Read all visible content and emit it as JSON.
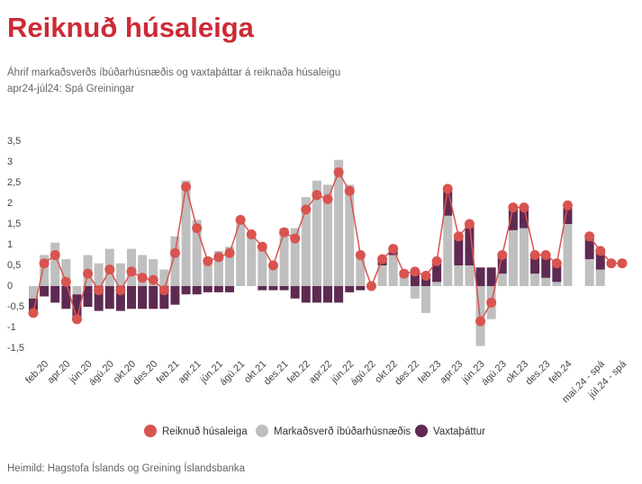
{
  "chart_data": {
    "type": "combo",
    "title": "Reiknuð húsaleiga",
    "subtitle": [
      "Áhrif markaðsverðs íbúðarhúsnæðis og vaxtaþáttar á reiknaða húsaleigu",
      "apr24-júl24: Spá Greiningar"
    ],
    "source": "Heimild: Hagstofa Íslands og Greining Íslandsbanka",
    "categories": [
      null,
      "feb.20",
      null,
      "apr.20",
      null,
      "jún.20",
      null,
      "ágú.20",
      null,
      "okt.20",
      null,
      "des.20",
      null,
      "feb.21",
      null,
      "apr.21",
      null,
      "jún.21",
      null,
      "ágú.21",
      null,
      "okt.21",
      null,
      "des.21",
      null,
      "feb.22",
      null,
      "apr.22",
      null,
      "jún.22",
      null,
      "ágú.22",
      null,
      "okt.22",
      null,
      "des.22",
      null,
      "feb.23",
      null,
      "apr.23",
      null,
      "jún.23",
      null,
      "ágú.23",
      null,
      "okt.23",
      null,
      "des.23",
      null,
      "feb.24",
      null,
      null,
      "maí.24 - spá",
      null,
      "júl.24 - spá"
    ],
    "series": [
      {
        "name": "Reiknuð húsaleiga",
        "type": "line",
        "color": "#d9534f",
        "values": [
          -0.65,
          0.55,
          0.75,
          0.1,
          -0.8,
          0.3,
          -0.1,
          0.4,
          -0.1,
          0.35,
          0.2,
          0.15,
          -0.1,
          0.8,
          2.4,
          1.4,
          0.6,
          0.7,
          0.8,
          1.6,
          1.25,
          0.95,
          0.5,
          1.3,
          1.15,
          1.85,
          2.2,
          2.1,
          2.75,
          2.3,
          0.75,
          0.0,
          0.65,
          0.9,
          0.3,
          0.35,
          0.25,
          0.6,
          2.35,
          1.2,
          1.5,
          -0.85,
          -0.4,
          0.75,
          1.9,
          1.9,
          0.75,
          0.75,
          0.55,
          1.95,
          null,
          1.2,
          0.85,
          0.55,
          0.55
        ]
      },
      {
        "name": "Markaðsverð íbúðarhúsnæðis",
        "type": "bar",
        "color": "#bfbfbf",
        "values": [
          -0.3,
          0.75,
          1.05,
          0.65,
          -0.2,
          0.75,
          0.55,
          0.9,
          0.55,
          0.9,
          0.75,
          0.65,
          0.4,
          1.2,
          2.55,
          1.6,
          0.7,
          0.85,
          0.95,
          1.6,
          1.25,
          1.0,
          0.55,
          1.4,
          1.4,
          2.15,
          2.55,
          2.45,
          3.05,
          2.45,
          0.75,
          0.05,
          0.5,
          0.75,
          0.3,
          -0.3,
          -0.65,
          0.1,
          1.7,
          0.5,
          0.5,
          -1.45,
          -0.8,
          0.3,
          1.35,
          1.4,
          0.3,
          0.2,
          0.1,
          1.5,
          null,
          0.65,
          0.4,
          null,
          null
        ]
      },
      {
        "name": "Vaxtaþáttur",
        "type": "bar",
        "color": "#5e2a52",
        "values": [
          -0.35,
          -0.25,
          -0.4,
          -0.55,
          -0.6,
          -0.5,
          -0.6,
          -0.55,
          -0.6,
          -0.55,
          -0.55,
          -0.55,
          -0.55,
          -0.45,
          -0.2,
          -0.2,
          -0.15,
          -0.15,
          -0.15,
          0,
          0,
          -0.1,
          -0.1,
          -0.1,
          -0.3,
          -0.4,
          -0.4,
          -0.4,
          -0.4,
          -0.15,
          -0.1,
          0,
          0.15,
          0.15,
          0.05,
          0.35,
          0.3,
          0.5,
          0.6,
          0.75,
          1.05,
          0.45,
          0.45,
          0.5,
          0.55,
          0.5,
          0.45,
          0.55,
          0.45,
          0.45,
          null,
          0.55,
          0.45,
          null,
          null
        ]
      }
    ],
    "ylim": [
      -1.5,
      3.5
    ],
    "yticks": [
      {
        "value": 3.5,
        "label": "3,5"
      },
      3,
      {
        "value": 2.5,
        "label": "2,5"
      },
      2,
      {
        "value": 1.5,
        "label": "1,5"
      },
      1,
      {
        "value": 0.5,
        "label": "0,5"
      },
      0,
      {
        "value": -0.5,
        "label": "-0,5"
      },
      -1,
      {
        "value": -1.5,
        "label": "-1,5"
      }
    ],
    "grid": false
  }
}
